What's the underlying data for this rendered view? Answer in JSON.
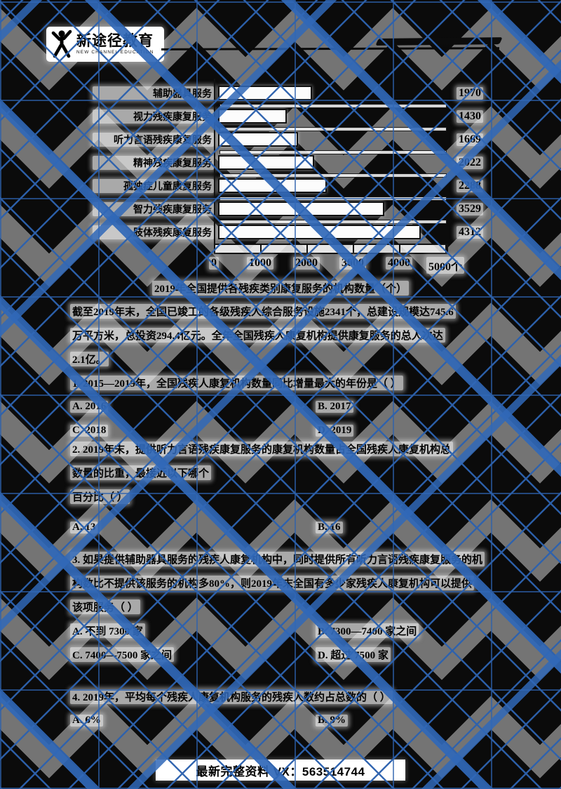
{
  "header": {
    "brand": "新途径教育",
    "brand_tagline": "NEW CHANNEL EDUCATION",
    "logo_icon": "jumping-person-icon",
    "redaction": "handwritten-strike-line"
  },
  "chart_data": {
    "type": "bar",
    "orientation": "horizontal",
    "title": "",
    "caption": "2019年全国提供各残疾类别康复服务的机构数量（个）",
    "categories": [
      "辅助器具服务",
      "视力残疾康复服务",
      "听力言语残疾康复服务",
      "精神残疾康复服务",
      "孤独症儿童康复服务",
      "智力残疾康复服务",
      "肢体残疾康复服务"
    ],
    "values": [
      1970,
      1430,
      1669,
      2022,
      2288,
      3529,
      4312
    ],
    "x_ticks": [
      "0",
      "1000",
      "2000",
      "3000",
      "4000",
      "5000个"
    ],
    "xlim": [
      0,
      5000
    ],
    "xlabel": "",
    "ylabel": "",
    "grid": false,
    "legend": "none",
    "bar_fill": "#ffffff",
    "bar_border": "#000000"
  },
  "document": {
    "intro_lines": [
      "截至2019年末，全国已竣工的各级残疾人综合服务设施2341个，总建设规模达745.6",
      "万平方米，总投资294.4亿元。全年全国残疾人康复机构提供康复服务的总人次达",
      "2.1亿。"
    ],
    "questions": [
      {
        "lines": [
          "1. 2015—2019年，全国残疾人康复机构数量同比增量最大的年份是（  ）"
        ],
        "options": [
          "A. 2016",
          "B. 2017",
          "C. 2018",
          "D. 2019"
        ]
      },
      {
        "lines": [
          "2. 2019年末，提供听力言语残疾康复服务的康复机构数量占全国残疾人康复机构总",
          "数量的比重，最接近以下哪个",
          "百分比（  ）"
        ],
        "options": [
          "A. 13",
          "B. 16"
        ]
      },
      {
        "lines": [
          "3. 如果提供辅助器具服务的残疾人康复机构中，同时提供所有听力言语残疾康复服务的机",
          "构数比不提供该服务的机构多80%，则2019年末全国有多少家残疾人康复机构可以提供",
          "该项服务（  ）"
        ],
        "options": [
          "A. 不到 7300 家",
          "B. 7300—7400 家之间",
          "C. 7400—7500 家之间",
          "D. 超过 7500 家"
        ]
      },
      {
        "lines": [
          "4. 2019年，平均每个残疾人康复机构服务的残疾人数约占总数的（  ）"
        ],
        "options": [
          "A. 6%",
          "B. 9%"
        ]
      }
    ]
  },
  "footer": {
    "text": "最新完整资料 VX：563514744"
  },
  "colors": {
    "watermark_blue": "#2d62ae",
    "scan_gray": "#747474",
    "diamond_black": "#0b0b0b",
    "ink": "#000000",
    "paper": "#ffffff"
  }
}
